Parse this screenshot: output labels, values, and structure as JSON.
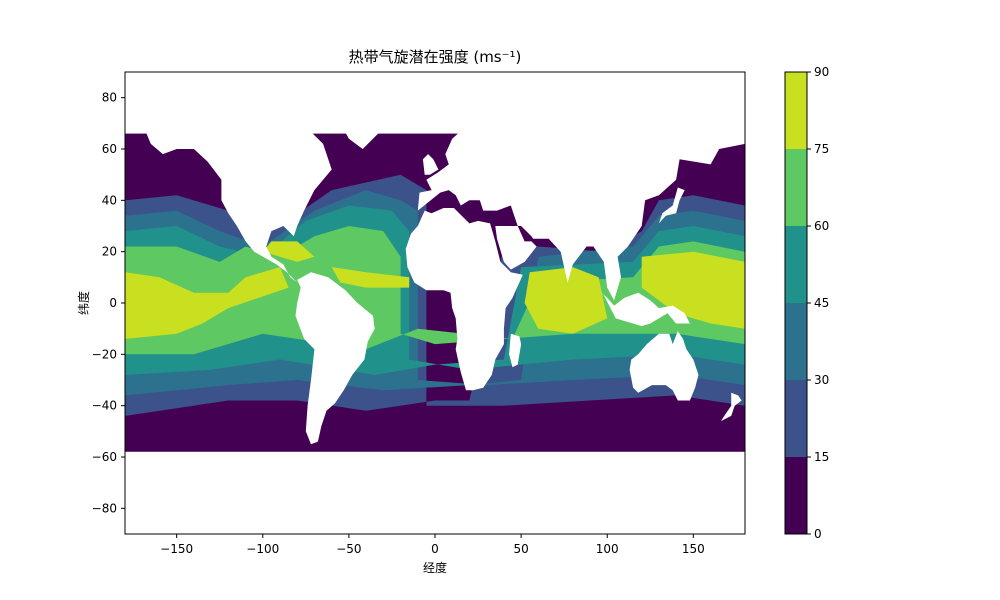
{
  "chart_data": {
    "type": "heatmap",
    "subtype": "filled-contour world map",
    "title": "热带气旋潜在强度 (ms⁻¹)",
    "xlabel": "经度",
    "ylabel": "纬度",
    "xlim": [
      -180,
      180
    ],
    "ylim": [
      -90,
      90
    ],
    "xticks": [
      -150,
      -100,
      -50,
      0,
      50,
      100,
      150
    ],
    "yticks": [
      -80,
      -60,
      -40,
      -20,
      0,
      20,
      40,
      60,
      80
    ],
    "xtick_labels": [
      "−150",
      "−100",
      "−50",
      "0",
      "50",
      "100",
      "150"
    ],
    "ytick_labels": [
      "−80",
      "−60",
      "−40",
      "−20",
      "0",
      "20",
      "40",
      "60",
      "80"
    ],
    "colorbar": {
      "levels": [
        0,
        15,
        30,
        45,
        60,
        75,
        90
      ],
      "tick_labels": [
        "0",
        "15",
        "30",
        "45",
        "60",
        "75",
        "90"
      ],
      "colors": [
        "#440154",
        "#3b528b",
        "#2c728e",
        "#21918c",
        "#5ec962",
        "#c9e020"
      ]
    },
    "land_color": "#ffffff",
    "grid": false
  }
}
